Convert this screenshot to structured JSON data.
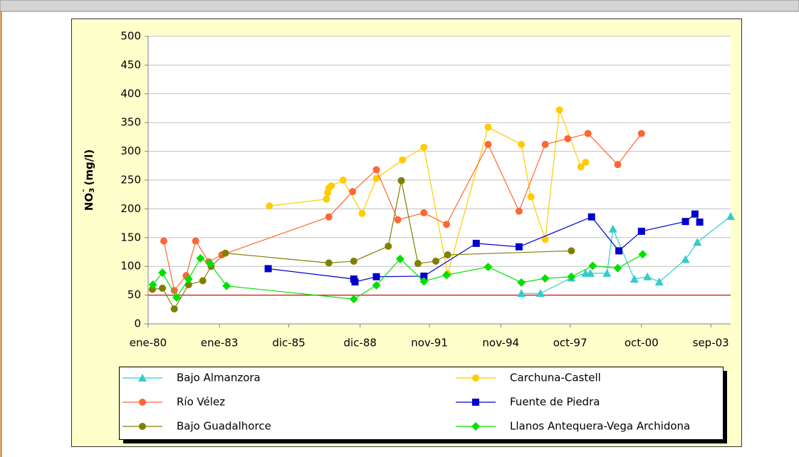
{
  "chart_data": {
    "type": "line",
    "ylabel": {
      "base": "NO",
      "sub": "3",
      "sup": "-",
      "unit": " (mg/l)"
    },
    "xlim": [
      1980,
      2004.5
    ],
    "xticks": [
      {
        "value": 1980,
        "label": "ene-80"
      },
      {
        "value": 1983,
        "label": "ene-83"
      },
      {
        "value": 1985.917,
        "label": "dic-85"
      },
      {
        "value": 1988.917,
        "label": "dic-88"
      },
      {
        "value": 1991.833,
        "label": "nov-91"
      },
      {
        "value": 1994.833,
        "label": "nov-94"
      },
      {
        "value": 1997.75,
        "label": "oct-97"
      },
      {
        "value": 2000.75,
        "label": "oct-00"
      },
      {
        "value": 2003.667,
        "label": "sep-03"
      }
    ],
    "ylim": [
      0,
      500
    ],
    "yticks": [
      0,
      50,
      100,
      150,
      200,
      250,
      300,
      350,
      400,
      450,
      500
    ],
    "grid": true,
    "reference_line": {
      "value": 50,
      "color": "#cc3333"
    },
    "series": [
      {
        "name": "Bajo Almanzora",
        "color": "#33cccc",
        "marker": "triangle",
        "x": [
          1995.7,
          1996.5,
          1997.8,
          1998.4,
          1998.6,
          1999.3,
          1999.55,
          2000.45,
          2001.0,
          2001.5,
          2002.6,
          2003.1,
          2004.5
        ],
        "values": [
          53,
          53,
          80,
          88,
          88,
          88,
          165,
          78,
          82,
          73,
          112,
          142,
          187
        ]
      },
      {
        "name": "Carchuna-Castell",
        "color": "#ffcc00",
        "marker": "circle",
        "x": [
          1985.1,
          1987.5,
          1987.55,
          1987.6,
          1987.7,
          1988.2,
          1989.0,
          1989.6,
          1990.7,
          1991.6,
          1992.6,
          1994.3,
          1995.7,
          1996.1,
          1996.7,
          1997.3,
          1998.2,
          1998.4
        ],
        "values": [
          205,
          217,
          228,
          236,
          240,
          250,
          192,
          253,
          285,
          307,
          87,
          342,
          312,
          221,
          147,
          372,
          273,
          281
        ]
      },
      {
        "name": "Río Vélez",
        "color": "#ff6633",
        "marker": "circle",
        "x": [
          1980.66,
          1981.1,
          1981.6,
          1982.0,
          1982.55,
          1983.1,
          1987.6,
          1988.6,
          1989.6,
          1990.5,
          1991.6,
          1992.55,
          1994.3,
          1995.6,
          1996.7,
          1997.65,
          1998.5,
          1999.75,
          2000.75
        ],
        "values": [
          144,
          58,
          84,
          144,
          108,
          120,
          186,
          230,
          268,
          181,
          193,
          173,
          312,
          196,
          312,
          322,
          331,
          277,
          331
        ]
      },
      {
        "name": "Fuente de Piedra",
        "color": "#0000cc",
        "marker": "square",
        "x": [
          1985.05,
          1988.65,
          1988.7,
          1989.6,
          1991.6,
          1993.8,
          1995.6,
          1998.65,
          1999.8,
          2000.75,
          2002.6,
          2003.0,
          2003.2
        ],
        "values": [
          96,
          78,
          73,
          82,
          83,
          140,
          134,
          186,
          127,
          161,
          178,
          191,
          177
        ]
      },
      {
        "name": "Bajo Guadalhorce",
        "color": "#808000",
        "marker": "circle",
        "x": [
          1980.18,
          1980.6,
          1981.1,
          1981.7,
          1982.3,
          1982.65,
          1983.25,
          1987.6,
          1988.65,
          1990.1,
          1990.65,
          1991.35,
          1992.1,
          1992.6,
          1997.8
        ],
        "values": [
          60,
          62,
          26,
          68,
          75,
          100,
          123,
          106,
          109,
          135,
          249,
          105,
          109,
          120,
          127
        ]
      },
      {
        "name": "Llanos Antequera-Vega Archidona",
        "color": "#00e000",
        "marker": "diamond",
        "x": [
          1980.2,
          1980.6,
          1981.2,
          1981.7,
          1982.2,
          1982.6,
          1983.3,
          1988.65,
          1989.6,
          1990.6,
          1991.6,
          1992.55,
          1994.3,
          1995.7,
          1996.7,
          1997.8,
          1998.7,
          1999.75,
          2000.8
        ],
        "values": [
          68,
          89,
          46,
          78,
          114,
          105,
          66,
          43,
          67,
          113,
          74,
          85,
          99,
          72,
          79,
          82,
          101,
          97,
          121
        ]
      }
    ]
  }
}
